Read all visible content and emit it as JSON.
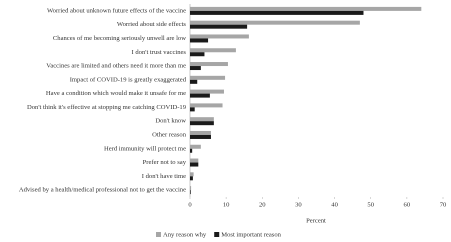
{
  "chart_data": {
    "type": "bar",
    "orientation": "horizontal",
    "categories": [
      "Worried about unknown future effects of the vaccine",
      "Worried about side effects",
      "Chances of me becoming seriously unwell are low",
      "I don't trust vaccines",
      "Vaccines are limited and others need it more than me",
      "Impact of COVID-19 is greatly exaggerated",
      "Have a condition which would make it unsafe for me",
      "Don't think it's effective at stopping me catching COVID-19",
      "Don't know",
      "Other reason",
      "Herd immunity will protect me",
      "Prefer not to say",
      "I don't have time",
      "Advised by a health/medical professional not to get the vaccine"
    ],
    "series": [
      {
        "name": "Any reason why",
        "color": "#a6a6a6",
        "values": [
          64,
          47,
          16.3,
          12.7,
          10.5,
          9.7,
          9.4,
          9,
          6.6,
          5.8,
          3,
          2.3,
          1,
          0.3
        ]
      },
      {
        "name": "Most important reason",
        "color": "#1a1a1a",
        "values": [
          48,
          15.8,
          5,
          4,
          3,
          2,
          5.5,
          1.3,
          6.6,
          5.8,
          0.6,
          2.3,
          0.8,
          0.2
        ]
      }
    ],
    "xlabel": "Percent",
    "xlim": [
      0,
      70
    ],
    "xticks": [
      0,
      10,
      20,
      30,
      40,
      50,
      60,
      70
    ],
    "grid": false,
    "legend": "bottom"
  }
}
